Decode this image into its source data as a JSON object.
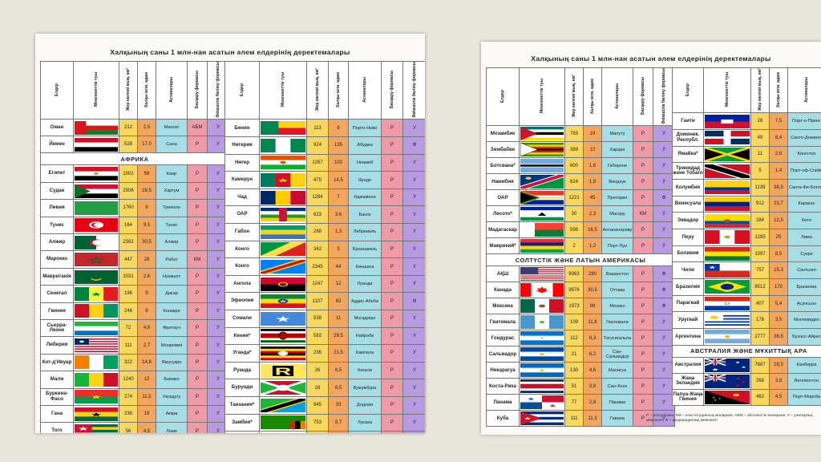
{
  "title": "Халқының саны 1 млн-нан асатын әлем елдерінің деректемалары",
  "headers": {
    "country": "Елдер",
    "flag": "Мемлекеттік туы",
    "area": "Жер көлемі мың. км²",
    "pop": "Халқы млн. адам",
    "capital": "Астаналары",
    "gov": "Басқару формасы",
    "adm": "Әкімшілік бөліну формасы"
  },
  "sections": {
    "africa": "АФРИКА",
    "latin": "СОЛТҮСТІК ЖӘНЕ ЛАТЫН АМЕРИКАСЫ",
    "australia": "АВСТРАЛИЯ ЖӘНЕ МҰХИТТЫҚ АРА"
  },
  "left_col1_top": [
    {
      "name": "Оман",
      "area": "212",
      "pop": "2,5",
      "capital": "Маскат",
      "gov": "АБМ",
      "adm": "У",
      "flag": "oman"
    },
    {
      "name": "Йемен",
      "area": "528",
      "pop": "17,0",
      "capital": "Сана",
      "gov": "Р",
      "adm": "У",
      "flag": "yemen"
    }
  ],
  "left_col1_africa": [
    {
      "name": "Египет",
      "area": "1002",
      "pop": "59",
      "capital": "Каир",
      "gov": "Р",
      "adm": "У",
      "flag": "egypt"
    },
    {
      "name": "Судан",
      "area": "2506",
      "pop": "28,5",
      "capital": "Хартум",
      "gov": "Р",
      "adm": "У",
      "flag": "sudan"
    },
    {
      "name": "Ливия",
      "area": "1760",
      "pop": "6",
      "capital": "Триполи",
      "gov": "Р",
      "adm": "У",
      "flag": "libya"
    },
    {
      "name": "Тунис",
      "area": "164",
      "pop": "9,5",
      "capital": "Тунис",
      "gov": "Р",
      "adm": "У",
      "flag": "tunisia"
    },
    {
      "name": "Алжир",
      "area": "2382",
      "pop": "30,5",
      "capital": "Алжир",
      "gov": "Р",
      "adm": "У",
      "flag": "algeria"
    },
    {
      "name": "Марокко",
      "area": "447",
      "pop": "28",
      "capital": "Рабат",
      "gov": "КМ",
      "adm": "У",
      "flag": "morocco"
    },
    {
      "name": "Мавританія",
      "area": "1031",
      "pop": "2,6",
      "capital": "Нуакшот",
      "gov": "Р",
      "adm": "У",
      "flag": "mauritania"
    },
    {
      "name": "Сенегал",
      "area": "196",
      "pop": "9",
      "capital": "Дакар",
      "gov": "Р",
      "adm": "У",
      "flag": "senegal"
    },
    {
      "name": "Гвинея",
      "area": "246",
      "pop": "8",
      "capital": "Конакри",
      "gov": "Р",
      "adm": "У",
      "flag": "guinea"
    },
    {
      "name": "Сьерра-Леоне",
      "area": "72",
      "pop": "4,8",
      "capital": "Фритаун",
      "gov": "Р",
      "adm": "У",
      "flag": "sierraleone"
    },
    {
      "name": "Либерия",
      "area": "111",
      "pop": "2,7",
      "capital": "Монровия",
      "gov": "Р",
      "adm": "У",
      "flag": "liberia"
    },
    {
      "name": "Кот-д'Ивуар",
      "area": "322",
      "pop": "14,8",
      "capital": "Ямусукро",
      "gov": "Р",
      "adm": "У",
      "flag": "ivorycoast"
    },
    {
      "name": "Мали",
      "area": "1240",
      "pop": "12",
      "capital": "Бамако",
      "gov": "Р",
      "adm": "У",
      "flag": "mali"
    },
    {
      "name": "Буркина-Фасо",
      "area": "274",
      "pop": "11,5",
      "capital": "Уагадугу",
      "gov": "Р",
      "adm": "У",
      "flag": "burkina"
    },
    {
      "name": "Гана",
      "area": "238",
      "pop": "19",
      "capital": "Аккра",
      "gov": "Р",
      "adm": "У",
      "flag": "ghana"
    },
    {
      "name": "Того",
      "area": "56",
      "pop": "4,5",
      "capital": "Ломе",
      "gov": "Р",
      "adm": "У",
      "flag": "togo"
    }
  ],
  "left_col2": [
    {
      "name": "Бенин",
      "area": "113",
      "pop": "6",
      "capital": "Порто-Ново",
      "gov": "Р",
      "adm": "У",
      "flag": "benin"
    },
    {
      "name": "Нигерия",
      "area": "924",
      "pop": "135",
      "capital": "Абуджа",
      "gov": "Р",
      "adm": "Ф",
      "flag": "nigeria"
    },
    {
      "name": "Нигер",
      "area": "1267",
      "pop": "103",
      "capital": "Ниамей",
      "gov": "Р",
      "adm": "У",
      "flag": "niger"
    },
    {
      "name": "Камерун",
      "area": "475",
      "pop": "14,5",
      "capital": "Яунде",
      "gov": "Р",
      "adm": "У",
      "flag": "cameroon"
    },
    {
      "name": "Чад",
      "area": "1284",
      "pop": "7",
      "capital": "Нджамена",
      "gov": "Р",
      "adm": "У",
      "flag": "chad"
    },
    {
      "name": "ОАР",
      "area": "623",
      "pop": "3,6",
      "capital": "Банги",
      "gov": "Р",
      "adm": "У",
      "flag": "car"
    },
    {
      "name": "Габон",
      "area": "268",
      "pop": "1,3",
      "capital": "Либревиль",
      "gov": "Р",
      "adm": "У",
      "flag": "gabon"
    },
    {
      "name": "Конго",
      "area": "342",
      "pop": "3",
      "capital": "Браззавиль",
      "gov": "Р",
      "adm": "У",
      "flag": "congo"
    },
    {
      "name": "Конго",
      "area": "2345",
      "pop": "44",
      "capital": "Киншаса",
      "gov": "Р",
      "adm": "У",
      "flag": "drc"
    },
    {
      "name": "Ангола",
      "area": "1247",
      "pop": "12",
      "capital": "Луанда",
      "gov": "Р",
      "adm": "У",
      "flag": "angola"
    },
    {
      "name": "Эфиопия",
      "area": "1107",
      "pop": "63",
      "capital": "Аддис-Абеба",
      "gov": "Р",
      "adm": "Ф",
      "flag": "ethiopia"
    },
    {
      "name": "Сомали",
      "area": "538",
      "pop": "11",
      "capital": "Могадишо",
      "gov": "Р",
      "adm": "У",
      "flag": "somalia"
    },
    {
      "name": "Кения*",
      "area": "583",
      "pop": "29,5",
      "capital": "Найроби",
      "gov": "Р",
      "adm": "У",
      "flag": "kenya"
    },
    {
      "name": "Уганда*",
      "area": "236",
      "pop": "21,5",
      "capital": "Кампала",
      "gov": "Р",
      "adm": "У",
      "flag": "uganda"
    },
    {
      "name": "Руанда",
      "area": "26",
      "pop": "6,5",
      "capital": "Кигали",
      "gov": "Р",
      "adm": "У",
      "flag": "rwanda"
    },
    {
      "name": "Бурунди",
      "area": "28",
      "pop": "6,5",
      "capital": "Бужумбура",
      "gov": "Р",
      "adm": "У",
      "flag": "burundi"
    },
    {
      "name": "Танзания*",
      "area": "945",
      "pop": "33",
      "capital": "Додома",
      "gov": "Р",
      "adm": "У",
      "flag": "tanzania"
    },
    {
      "name": "Замбия*",
      "area": "753",
      "pop": "8,7",
      "capital": "Лусака",
      "gov": "Р",
      "adm": "У",
      "flag": "zambia"
    },
    {
      "name": "Малави*",
      "area": "119",
      "pop": "10,5",
      "capital": "Лилонгве",
      "gov": "Р",
      "adm": "У",
      "flag": "malawi"
    }
  ],
  "right_col1_top": [
    {
      "name": "Мозамбик",
      "area": "783",
      "pop": "19",
      "capital": "Мапуту",
      "gov": "Р",
      "adm": "У",
      "flag": "mozambique"
    },
    {
      "name": "Зимбабве",
      "area": "389",
      "pop": "12",
      "capital": "Хараре",
      "gov": "Р",
      "adm": "У",
      "flag": "zimbabwe"
    },
    {
      "name": "Ботсвана*",
      "area": "600",
      "pop": "1,6",
      "capital": "Габороне",
      "gov": "Р",
      "adm": "У",
      "flag": "botswana"
    },
    {
      "name": "Намибия",
      "area": "824",
      "pop": "1,8",
      "capital": "Виндхук",
      "gov": "Р",
      "adm": "У",
      "flag": "namibia"
    },
    {
      "name": "ОАР",
      "area": "1221",
      "pop": "45",
      "capital": "Претория",
      "gov": "Р",
      "adm": "Ф",
      "flag": "southafrica"
    },
    {
      "name": "Лесото*",
      "area": "30",
      "pop": "2,3",
      "capital": "Масеру",
      "gov": "КМ",
      "adm": "У",
      "flag": "lesotho"
    },
    {
      "name": "Мадагаскар",
      "area": "596",
      "pop": "16,5",
      "capital": "Антананариву",
      "gov": "Р",
      "adm": "У",
      "flag": "madagascar"
    },
    {
      "name": "Маврикий*",
      "area": "2",
      "pop": "1,2",
      "capital": "Порт-Луи",
      "gov": "Р",
      "adm": "У",
      "flag": "mauritius"
    }
  ],
  "right_col1_latin": [
    {
      "name": "АҚШ",
      "area": "9363",
      "pop": "280",
      "capital": "Вашингтон",
      "gov": "Р",
      "adm": "Ф",
      "flag": "usa"
    },
    {
      "name": "Канада",
      "area": "9976",
      "pop": "30,5",
      "capital": "Оттава",
      "gov": "Р",
      "adm": "Ф",
      "flag": "canada"
    },
    {
      "name": "Мексика",
      "area": "1973",
      "pop": "98",
      "capital": "Мехико",
      "gov": "Р",
      "adm": "Ф",
      "flag": "mexico"
    },
    {
      "name": "Гватемала",
      "area": "109",
      "pop": "11,8",
      "capital": "Гватемала",
      "gov": "Р",
      "adm": "У",
      "flag": "guatemala"
    },
    {
      "name": "Гондурас",
      "area": "112",
      "pop": "6,3",
      "capital": "Тегусигальпа",
      "gov": "Р",
      "adm": "У",
      "flag": "honduras"
    },
    {
      "name": "Сальвадор",
      "area": "21",
      "pop": "6,2",
      "capital": "Сан-Сальвадор",
      "gov": "Р",
      "adm": "У",
      "flag": "salvador"
    },
    {
      "name": "Никарагуа",
      "area": "130",
      "pop": "4,6",
      "capital": "Манагуа",
      "gov": "Р",
      "adm": "У",
      "flag": "nicaragua"
    },
    {
      "name": "Коста-Рика",
      "area": "51",
      "pop": "3,8",
      "capital": "Сан-Хосе",
      "gov": "Р",
      "adm": "У",
      "flag": "costarica"
    },
    {
      "name": "Панама",
      "area": "77",
      "pop": "2,8",
      "capital": "Панама",
      "gov": "Р",
      "adm": "У",
      "flag": "panama"
    },
    {
      "name": "Куба",
      "area": "111",
      "pop": "11,3",
      "capital": "Гавана",
      "gov": "Р",
      "adm": "У",
      "flag": "cuba"
    }
  ],
  "right_col2": [
    {
      "name": "Гаити",
      "area": "28",
      "pop": "7,5",
      "capital": "Порт-о-Пренс",
      "flag": "haiti"
    },
    {
      "name": "Доминик. Республ.",
      "area": "49",
      "pop": "8,4",
      "capital": "Санто-Доминго",
      "flag": "dominican"
    },
    {
      "name": "Ямайка*",
      "area": "11",
      "pop": "2,6",
      "capital": "Кингстон",
      "flag": "jamaica"
    },
    {
      "name": "Тринидад және Тобаго",
      "area": "5",
      "pop": "1,4",
      "capital": "Порт-оф-Спейн",
      "flag": "trinidad"
    },
    {
      "name": "Колумбия",
      "area": "1139",
      "pop": "38,5",
      "capital": "Санта-Фе-Богота",
      "flag": "colombia"
    },
    {
      "name": "Венесуэла",
      "area": "912",
      "pop": "23,7",
      "capital": "Каракас",
      "flag": "venezuela"
    },
    {
      "name": "Эквадор",
      "area": "284",
      "pop": "12,5",
      "capital": "Кито",
      "flag": "ecuador"
    },
    {
      "name": "Перу",
      "area": "1285",
      "pop": "25",
      "capital": "Лима",
      "flag": "peru"
    },
    {
      "name": "Боливия",
      "area": "1097",
      "pop": "8,5",
      "capital": "Сукре",
      "flag": "bolivia"
    },
    {
      "name": "Чили",
      "area": "757",
      "pop": "15,3",
      "capital": "Сантьяго",
      "flag": "chile"
    },
    {
      "name": "Бразилия",
      "area": "8512",
      "pop": "170",
      "capital": "Бразилиа",
      "flag": "brazil"
    },
    {
      "name": "Парагвай",
      "area": "407",
      "pop": "5,4",
      "capital": "Асунсьон",
      "flag": "paraguay"
    },
    {
      "name": "Уругвай",
      "area": "178",
      "pop": "3,5",
      "capital": "Монтевидео",
      "flag": "uruguay"
    },
    {
      "name": "Аргентина",
      "area": "2777",
      "pop": "36,5",
      "capital": "Буэнос-Айрес",
      "flag": "argentina"
    }
  ],
  "right_col2_aus": [
    {
      "name": "Австралия",
      "area": "7687",
      "pop": "18,5",
      "capital": "Канберра",
      "flag": "australia"
    },
    {
      "name": "Жаңа Зеландия",
      "area": "268",
      "pop": "3,8",
      "capital": "Веллингтон",
      "flag": "newzealand"
    },
    {
      "name": "Папуа-Жаңа Гвинея",
      "area": "462",
      "pop": "4,5",
      "capital": "Порт-Морсби",
      "flag": "png"
    }
  ],
  "footnote": "Р – республика, КМ – конституциялық монархия, АБМ – абсолюттік монархия, У – унитарлық мемлекет, Ф – федерациялық мемлекет"
}
